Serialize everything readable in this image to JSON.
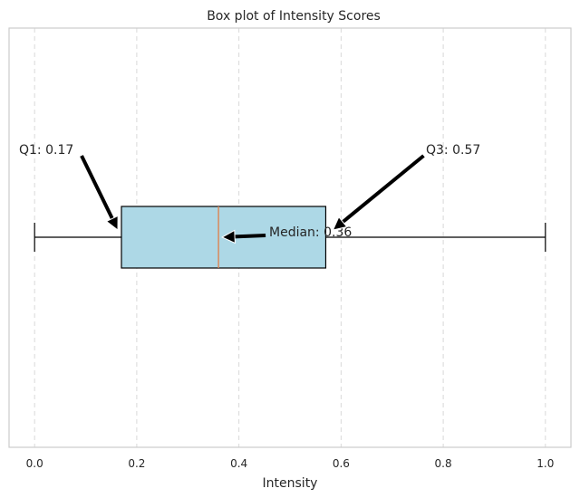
{
  "chart_data": {
    "type": "box",
    "orientation": "horizontal",
    "title": "Box plot of Intensity Scores",
    "xlabel": "Intensity",
    "xlim": [
      -0.05,
      1.05
    ],
    "xticks": [
      0.0,
      0.2,
      0.4,
      0.6,
      0.8,
      1.0
    ],
    "xtick_labels": [
      "0.0",
      "0.2",
      "0.4",
      "0.6",
      "0.8",
      "1.0"
    ],
    "grid": "vertical dashed",
    "stats": {
      "min": 0.0,
      "q1": 0.17,
      "median": 0.36,
      "q3": 0.57,
      "max": 1.0
    },
    "colors": {
      "box_fill": "#add8e6",
      "median_line": "#dd8452",
      "grid": "#d9d9d9",
      "spine": "#cccccc",
      "arrow": "#000000"
    },
    "annotations": [
      {
        "key": "q1",
        "text": "Q1: 0.17"
      },
      {
        "key": "median",
        "text": "Median: 0.36"
      },
      {
        "key": "q3",
        "text": "Q3: 0.57"
      }
    ]
  }
}
